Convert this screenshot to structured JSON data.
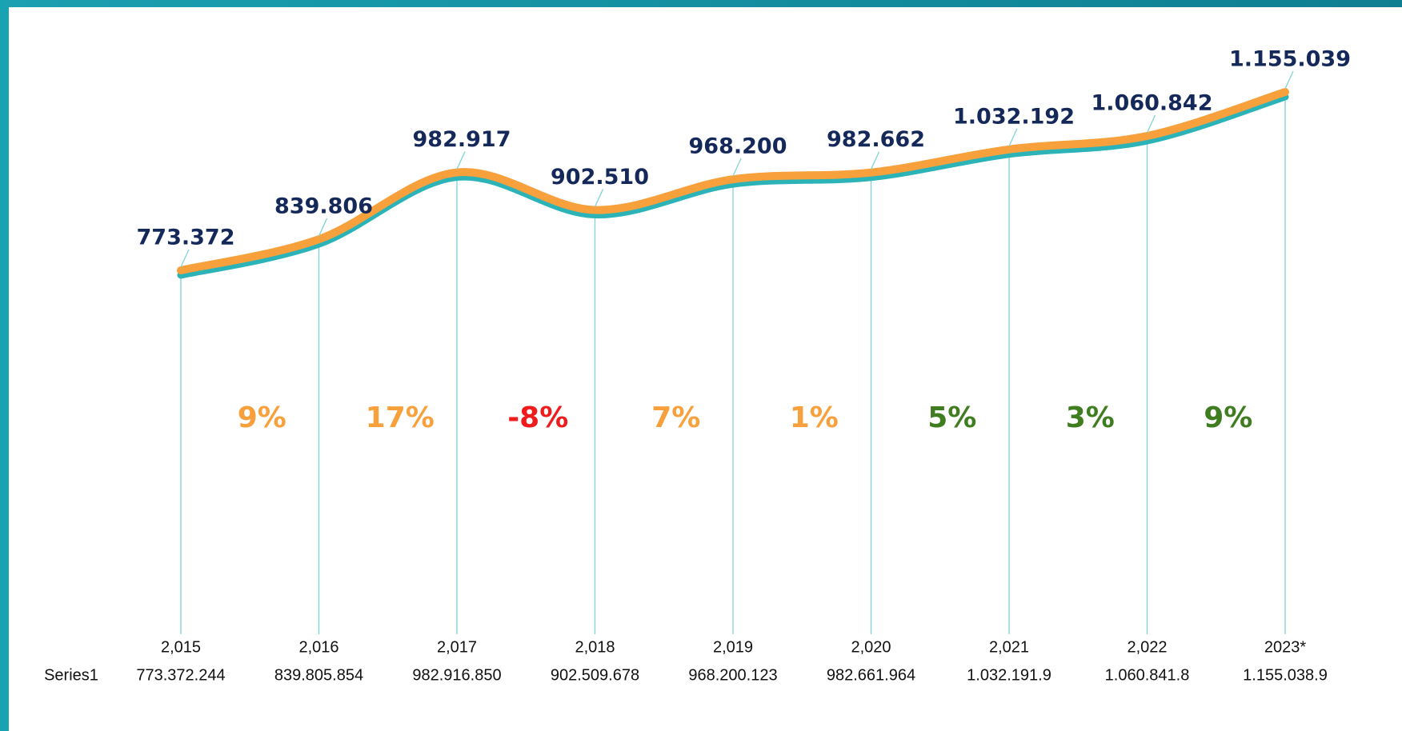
{
  "chart_data": {
    "type": "line",
    "categories": [
      "2,015",
      "2,016",
      "2,017",
      "2,018",
      "2,019",
      "2,020",
      "2,021",
      "2,022",
      "2023*"
    ],
    "series": [
      {
        "name": "Series1",
        "color": "#f7a03c",
        "shadow_color": "#2bb3b8",
        "values": [
          773372244,
          839805854,
          982916850,
          902509678,
          968200123,
          982661964,
          1032191900,
          1060841800,
          1155038900
        ],
        "value_labels": [
          "773.372",
          "839.806",
          "982.917",
          "902.510",
          "968.200",
          "982.662",
          "1.032.192",
          "1.060.842",
          "1.155.039"
        ],
        "table_labels": [
          "773.372.244",
          "839.805.854",
          "982.916.850",
          "902.509.678",
          "968.200.123",
          "982.661.964",
          "1.032.191.9",
          "1.060.841.8",
          "1.155.038.9"
        ]
      }
    ],
    "growth": {
      "values": [
        9,
        17,
        -8,
        7,
        1,
        5,
        3,
        9
      ],
      "value_labels": [
        "9%",
        "17%",
        "-8%",
        "7%",
        "1%",
        "5%",
        "3%",
        "9%"
      ],
      "colors": [
        "#f7a03c",
        "#f7a03c",
        "#ee1c1c",
        "#f7a03c",
        "#f7a03c",
        "#3f7d20",
        "#3f7d20",
        "#3f7d20"
      ]
    }
  }
}
